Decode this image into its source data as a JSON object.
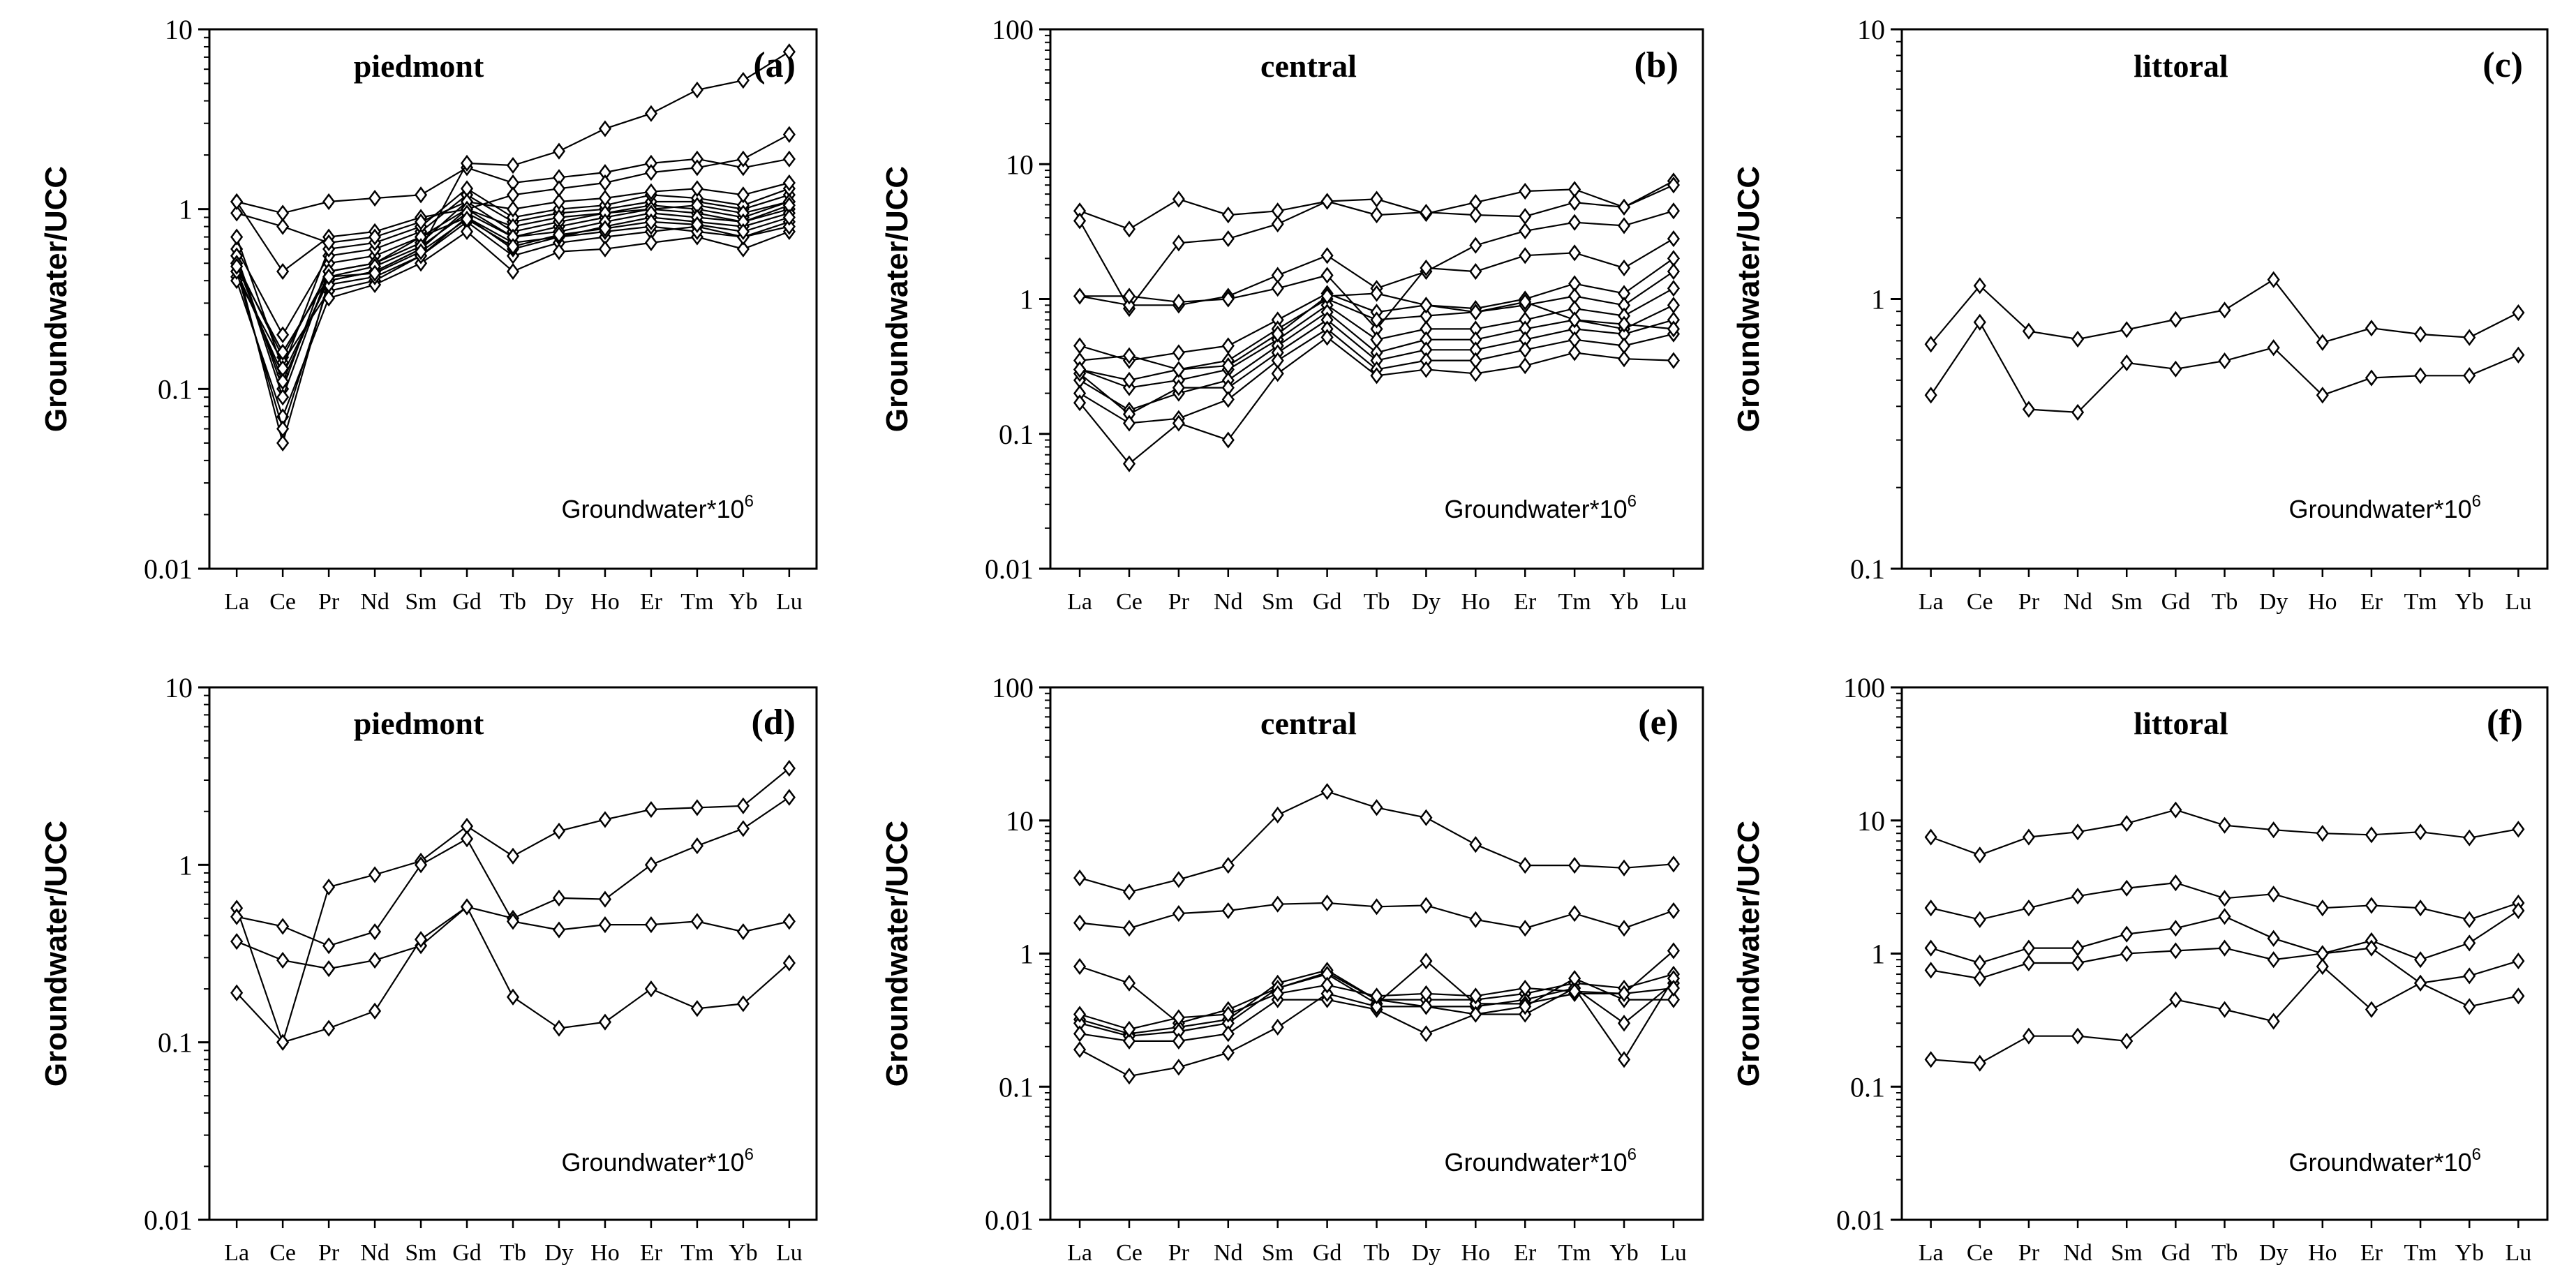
{
  "note_text": "Groundwater*10",
  "note_sup": "6",
  "ylabel": "Groundwater/UCC",
  "chart_data": [
    {
      "type": "line",
      "title": "piedmont",
      "letter": "(a)",
      "yscale": "log",
      "ylim": [
        0.01,
        10
      ],
      "yticks": [
        {
          "v": 10,
          "t": "10"
        },
        {
          "v": 1,
          "t": "1"
        },
        {
          "v": 0.1,
          "t": "0.1"
        },
        {
          "v": 0.01,
          "t": "0.01"
        }
      ],
      "categories": [
        "La",
        "Ce",
        "Pr",
        "Nd",
        "Sm",
        "Gd",
        "Tb",
        "Dy",
        "Ho",
        "Er",
        "Tm",
        "Yb",
        "Lu"
      ],
      "series": [
        {
          "name": "a1",
          "values": [
            0.45,
            0.12,
            0.4,
            0.45,
            0.6,
            1.0,
            0.7,
            0.8,
            0.9,
            1.0,
            0.95,
            0.85,
            1.0
          ]
        },
        {
          "name": "a2",
          "values": [
            0.5,
            0.15,
            0.45,
            0.5,
            0.65,
            1.1,
            0.75,
            0.85,
            0.95,
            1.05,
            1.0,
            0.9,
            1.1
          ]
        },
        {
          "name": "a3",
          "values": [
            0.55,
            0.1,
            0.5,
            0.55,
            0.7,
            0.9,
            0.65,
            0.7,
            0.8,
            0.9,
            0.85,
            0.8,
            0.95
          ]
        },
        {
          "name": "a4",
          "values": [
            0.42,
            0.14,
            0.35,
            0.4,
            0.55,
            0.85,
            0.55,
            0.65,
            0.7,
            0.75,
            0.8,
            0.7,
            0.85
          ]
        },
        {
          "name": "a5",
          "values": [
            0.4,
            0.07,
            0.32,
            0.38,
            0.5,
            0.75,
            0.45,
            0.58,
            0.6,
            0.65,
            0.7,
            0.6,
            0.75
          ]
        },
        {
          "name": "a6",
          "values": [
            0.6,
            0.2,
            0.55,
            0.6,
            0.75,
            1.2,
            0.85,
            0.95,
            1.0,
            1.1,
            1.1,
            1.0,
            1.2
          ]
        },
        {
          "name": "a7",
          "values": [
            0.7,
            0.13,
            0.6,
            0.65,
            0.8,
            1.3,
            0.9,
            1.0,
            1.05,
            1.2,
            1.15,
            1.05,
            1.3
          ]
        },
        {
          "name": "a8",
          "values": [
            1.1,
            0.45,
            0.7,
            0.75,
            0.9,
            1.0,
            0.8,
            0.9,
            0.95,
            1.0,
            1.05,
            0.95,
            1.1
          ]
        },
        {
          "name": "a9",
          "values": [
            0.95,
            0.8,
            0.65,
            0.7,
            0.85,
            1.1,
            1.0,
            1.1,
            1.15,
            1.25,
            1.3,
            1.2,
            1.4
          ]
        },
        {
          "name": "a10",
          "values": [
            1.1,
            0.95,
            1.1,
            1.15,
            1.2,
            1.7,
            1.4,
            1.5,
            1.6,
            1.8,
            1.9,
            1.7,
            1.9
          ]
        },
        {
          "name": "a11",
          "values": [
            0.5,
            0.05,
            0.4,
            0.45,
            0.6,
            1.8,
            1.75,
            2.1,
            2.8,
            3.4,
            4.6,
            5.2,
            7.5
          ]
        },
        {
          "name": "a12",
          "values": [
            0.45,
            0.06,
            0.38,
            0.42,
            0.55,
            0.9,
            0.6,
            0.7,
            0.75,
            0.8,
            0.75,
            0.7,
            0.8
          ]
        },
        {
          "name": "a13",
          "values": [
            0.55,
            0.09,
            0.45,
            0.5,
            0.7,
            1.0,
            1.2,
            1.3,
            1.4,
            1.6,
            1.7,
            1.9,
            2.6
          ]
        },
        {
          "name": "a14",
          "values": [
            0.5,
            0.11,
            0.42,
            0.48,
            0.62,
            0.95,
            0.7,
            0.75,
            0.85,
            0.95,
            0.9,
            0.85,
            1.05
          ]
        },
        {
          "name": "a15",
          "values": [
            0.48,
            0.16,
            0.42,
            0.44,
            0.58,
            0.88,
            0.62,
            0.72,
            0.78,
            0.85,
            0.82,
            0.75,
            0.9
          ]
        }
      ]
    },
    {
      "type": "line",
      "title": "central",
      "letter": "(b)",
      "yscale": "log",
      "ylim": [
        0.01,
        100
      ],
      "yticks": [
        {
          "v": 100,
          "t": "100"
        },
        {
          "v": 10,
          "t": "10"
        },
        {
          "v": 1,
          "t": "1"
        },
        {
          "v": 0.1,
          "t": "0.1"
        },
        {
          "v": 0.01,
          "t": "0.01"
        }
      ],
      "categories": [
        "La",
        "Ce",
        "Pr",
        "Nd",
        "Sm",
        "Gd",
        "Tb",
        "Dy",
        "Ho",
        "Er",
        "Tm",
        "Yb",
        "Lu"
      ],
      "series": [
        {
          "name": "b1",
          "values": [
            4.5,
            3.3,
            5.5,
            4.2,
            4.5,
            5.3,
            5.5,
            4.3,
            5.2,
            6.3,
            6.5,
            4.8,
            7.5
          ]
        },
        {
          "name": "b2",
          "values": [
            3.8,
            0.85,
            2.6,
            2.8,
            3.6,
            5.3,
            4.2,
            4.4,
            4.2,
            4.1,
            5.2,
            4.8,
            7.0
          ]
        },
        {
          "name": "b3",
          "values": [
            1.05,
            0.9,
            0.9,
            1.05,
            1.5,
            2.1,
            1.2,
            1.6,
            2.5,
            3.2,
            3.7,
            3.5,
            4.5
          ]
        },
        {
          "name": "b4",
          "values": [
            1.05,
            1.05,
            0.95,
            1.0,
            1.2,
            1.5,
            0.6,
            1.7,
            1.6,
            2.1,
            2.2,
            1.7,
            2.8
          ]
        },
        {
          "name": "b5",
          "values": [
            0.45,
            0.35,
            0.4,
            0.45,
            0.7,
            1.1,
            0.8,
            0.9,
            0.85,
            1.0,
            1.3,
            1.1,
            2.0
          ]
        },
        {
          "name": "b6",
          "values": [
            0.35,
            0.38,
            0.3,
            0.35,
            0.6,
            1.0,
            0.7,
            0.75,
            0.8,
            0.9,
            1.05,
            0.9,
            1.6
          ]
        },
        {
          "name": "b7",
          "values": [
            0.3,
            0.22,
            0.25,
            0.3,
            0.5,
            0.9,
            0.5,
            0.6,
            0.6,
            0.7,
            0.85,
            0.75,
            1.2
          ]
        },
        {
          "name": "b8",
          "values": [
            0.25,
            0.15,
            0.2,
            0.25,
            0.45,
            0.8,
            0.4,
            0.5,
            0.5,
            0.6,
            0.7,
            0.6,
            0.9
          ]
        },
        {
          "name": "b9",
          "values": [
            0.28,
            0.14,
            0.22,
            0.22,
            0.4,
            0.7,
            0.35,
            0.42,
            0.42,
            0.5,
            0.6,
            0.55,
            0.7
          ]
        },
        {
          "name": "b10",
          "values": [
            0.2,
            0.12,
            0.13,
            0.18,
            0.35,
            0.6,
            0.3,
            0.35,
            0.35,
            0.42,
            0.5,
            0.45,
            0.55
          ]
        },
        {
          "name": "b11",
          "values": [
            0.17,
            0.06,
            0.12,
            0.09,
            0.28,
            0.52,
            0.27,
            0.3,
            0.28,
            0.32,
            0.4,
            0.36,
            0.35
          ]
        },
        {
          "name": "b12",
          "values": [
            0.3,
            0.25,
            0.3,
            0.32,
            0.55,
            1.05,
            1.1,
            0.9,
            0.8,
            0.95,
            0.7,
            0.65,
            0.6
          ]
        }
      ]
    },
    {
      "type": "line",
      "title": "littoral",
      "letter": "(c)",
      "yscale": "log",
      "ylim": [
        0.1,
        10
      ],
      "yticks": [
        {
          "v": 10,
          "t": "10"
        },
        {
          "v": 1,
          "t": "1"
        },
        {
          "v": 0.1,
          "t": "0.1"
        }
      ],
      "categories": [
        "La",
        "Ce",
        "Pr",
        "Nd",
        "Sm",
        "Gd",
        "Tb",
        "Dy",
        "Ho",
        "Er",
        "Tm",
        "Yb",
        "Lu"
      ],
      "series": [
        {
          "name": "c1",
          "values": [
            0.68,
            1.12,
            0.76,
            0.71,
            0.77,
            0.84,
            0.91,
            1.18,
            0.69,
            0.78,
            0.74,
            0.72,
            0.89
          ]
        },
        {
          "name": "c2",
          "values": [
            0.44,
            0.82,
            0.39,
            0.38,
            0.58,
            0.55,
            0.59,
            0.66,
            0.44,
            0.51,
            0.52,
            0.52,
            0.62
          ]
        }
      ]
    },
    {
      "type": "line",
      "title": "piedmont",
      "letter": "(d)",
      "yscale": "log",
      "ylim": [
        0.01,
        10
      ],
      "yticks": [
        {
          "v": 10,
          "t": "10"
        },
        {
          "v": 1,
          "t": "1"
        },
        {
          "v": 0.1,
          "t": "0.1"
        },
        {
          "v": 0.01,
          "t": "0.01"
        }
      ],
      "categories": [
        "La",
        "Ce",
        "Pr",
        "Nd",
        "Sm",
        "Gd",
        "Tb",
        "Dy",
        "Ho",
        "Er",
        "Tm",
        "Yb",
        "Lu"
      ],
      "series": [
        {
          "name": "d1",
          "values": [
            0.57,
            0.1,
            0.75,
            0.88,
            1.05,
            1.65,
            1.12,
            1.55,
            1.8,
            2.05,
            2.1,
            2.15,
            3.5
          ]
        },
        {
          "name": "d2",
          "values": [
            0.37,
            0.29,
            0.26,
            0.29,
            0.35,
            0.58,
            0.5,
            0.65,
            0.64,
            1.0,
            1.28,
            1.6,
            2.4
          ]
        },
        {
          "name": "d3",
          "values": [
            0.19,
            0.1,
            0.12,
            0.15,
            0.38,
            0.58,
            0.18,
            0.12,
            0.13,
            0.2,
            0.155,
            0.165,
            0.28
          ]
        },
        {
          "name": "d4",
          "values": [
            0.51,
            0.45,
            0.35,
            0.42,
            1.0,
            1.4,
            0.48,
            0.43,
            0.46,
            0.46,
            0.48,
            0.42,
            0.48
          ]
        }
      ]
    },
    {
      "type": "line",
      "title": "central",
      "letter": "(e)",
      "yscale": "log",
      "ylim": [
        0.01,
        100
      ],
      "yticks": [
        {
          "v": 100,
          "t": "100"
        },
        {
          "v": 10,
          "t": "10"
        },
        {
          "v": 1,
          "t": "1"
        },
        {
          "v": 0.1,
          "t": "0.1"
        },
        {
          "v": 0.01,
          "t": "0.01"
        }
      ],
      "categories": [
        "La",
        "Ce",
        "Pr",
        "Nd",
        "Sm",
        "Gd",
        "Tb",
        "Dy",
        "Ho",
        "Er",
        "Tm",
        "Yb",
        "Lu"
      ],
      "series": [
        {
          "name": "e1",
          "values": [
            3.7,
            2.9,
            3.6,
            4.6,
            11.0,
            16.5,
            12.5,
            10.5,
            6.6,
            4.6,
            4.6,
            4.4,
            4.7
          ]
        },
        {
          "name": "e2",
          "values": [
            1.7,
            1.55,
            2.0,
            2.1,
            2.35,
            2.4,
            2.25,
            2.3,
            1.8,
            1.55,
            2.0,
            1.55,
            2.1
          ]
        },
        {
          "name": "e3",
          "values": [
            0.8,
            0.6,
            0.3,
            0.38,
            0.55,
            0.72,
            0.45,
            0.45,
            0.45,
            0.5,
            0.6,
            0.55,
            0.7
          ]
        },
        {
          "name": "e4",
          "values": [
            0.32,
            0.25,
            0.28,
            0.32,
            0.6,
            0.75,
            0.45,
            0.4,
            0.4,
            0.45,
            0.55,
            0.3,
            0.6
          ]
        },
        {
          "name": "e5",
          "values": [
            0.3,
            0.24,
            0.26,
            0.3,
            0.55,
            0.7,
            0.42,
            0.88,
            0.42,
            0.42,
            0.5,
            0.5,
            1.05
          ]
        },
        {
          "name": "e6",
          "values": [
            0.25,
            0.22,
            0.22,
            0.25,
            0.45,
            0.45,
            0.38,
            0.25,
            0.35,
            0.35,
            0.55,
            0.16,
            0.65
          ]
        },
        {
          "name": "e7",
          "values": [
            0.19,
            0.12,
            0.14,
            0.18,
            0.28,
            0.5,
            0.4,
            0.4,
            0.35,
            0.4,
            0.65,
            0.45,
            0.45
          ]
        },
        {
          "name": "e8",
          "values": [
            0.35,
            0.27,
            0.33,
            0.35,
            0.5,
            0.58,
            0.48,
            0.5,
            0.48,
            0.55,
            0.52,
            0.5,
            0.55
          ]
        }
      ]
    },
    {
      "type": "line",
      "title": "littoral",
      "letter": "(f)",
      "yscale": "log",
      "ylim": [
        0.01,
        100
      ],
      "yticks": [
        {
          "v": 100,
          "t": "100"
        },
        {
          "v": 10,
          "t": "10"
        },
        {
          "v": 1,
          "t": "1"
        },
        {
          "v": 0.1,
          "t": "0.1"
        },
        {
          "v": 0.01,
          "t": "0.01"
        }
      ],
      "categories": [
        "La",
        "Ce",
        "Pr",
        "Nd",
        "Sm",
        "Gd",
        "Tb",
        "Dy",
        "Ho",
        "Er",
        "Tm",
        "Yb",
        "Lu"
      ],
      "series": [
        {
          "name": "f1",
          "values": [
            7.5,
            5.5,
            7.5,
            8.2,
            9.5,
            12.0,
            9.2,
            8.5,
            8.0,
            7.8,
            8.2,
            7.4,
            8.6
          ]
        },
        {
          "name": "f2",
          "values": [
            2.2,
            1.8,
            2.2,
            2.7,
            3.1,
            3.4,
            2.6,
            2.8,
            2.2,
            2.3,
            2.2,
            1.8,
            2.4
          ]
        },
        {
          "name": "f3",
          "values": [
            1.1,
            0.85,
            1.1,
            1.1,
            1.4,
            1.55,
            1.9,
            1.3,
            1.0,
            1.25,
            0.9,
            1.2,
            2.1
          ]
        },
        {
          "name": "f4",
          "values": [
            0.75,
            0.65,
            0.85,
            0.85,
            1.0,
            1.05,
            1.1,
            0.9,
            1.0,
            1.1,
            0.6,
            0.4,
            0.48
          ]
        },
        {
          "name": "f5",
          "values": [
            0.16,
            0.15,
            0.24,
            0.24,
            0.22,
            0.45,
            0.38,
            0.31,
            0.8,
            0.38,
            0.6,
            0.68,
            0.88
          ]
        }
      ]
    }
  ]
}
